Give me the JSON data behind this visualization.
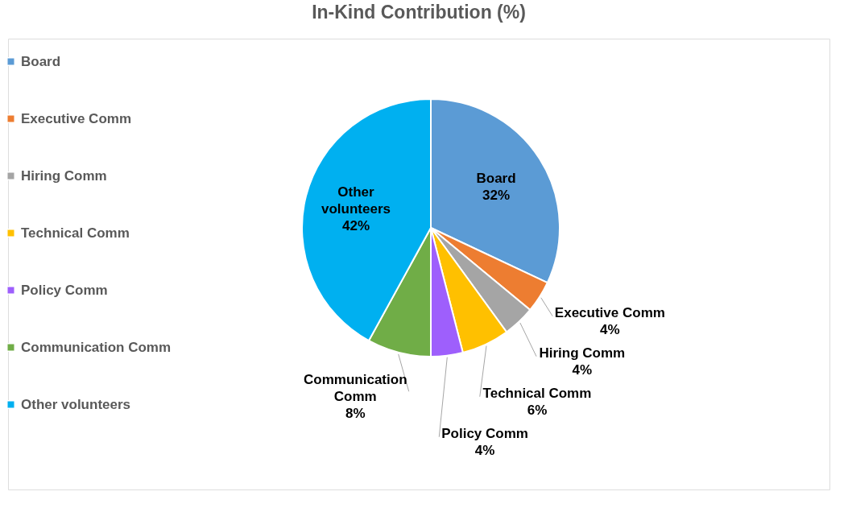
{
  "chart_data": {
    "type": "pie",
    "title": "In-Kind Contribution (%)",
    "categories": [
      "Board",
      "Executive Comm",
      "Hiring Comm",
      "Technical Comm",
      "Policy Comm",
      "Communication Comm",
      "Other volunteers"
    ],
    "values": [
      32,
      4,
      4,
      6,
      4,
      8,
      42
    ],
    "value_labels": [
      "32%",
      "4%",
      "4%",
      "6%",
      "4%",
      "8%",
      "42%"
    ],
    "colors": [
      "#5b9bd5",
      "#ed7d31",
      "#a5a5a5",
      "#ffc000",
      "#9e5ffc",
      "#70ad47",
      "#00b0f0"
    ],
    "legend": "left"
  }
}
